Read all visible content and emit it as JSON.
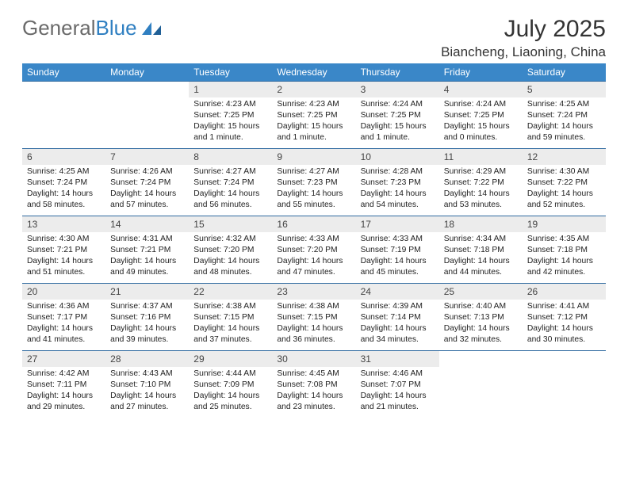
{
  "brand": {
    "part1": "General",
    "part2": "Blue"
  },
  "title": "July 2025",
  "location": "Biancheng, Liaoning, China",
  "colors": {
    "header_bg": "#3a87c8",
    "header_fg": "#ffffff",
    "daynum_bg": "#ececec",
    "row_border": "#2f6aa0",
    "logo_gray": "#6a6a6a",
    "logo_blue": "#2f7fc1"
  },
  "day_names": [
    "Sunday",
    "Monday",
    "Tuesday",
    "Wednesday",
    "Thursday",
    "Friday",
    "Saturday"
  ],
  "weeks": [
    [
      {
        "n": "",
        "lines": [
          "",
          "",
          "",
          ""
        ]
      },
      {
        "n": "",
        "lines": [
          "",
          "",
          "",
          ""
        ]
      },
      {
        "n": "1",
        "lines": [
          "Sunrise: 4:23 AM",
          "Sunset: 7:25 PM",
          "Daylight: 15 hours",
          "and 1 minute."
        ]
      },
      {
        "n": "2",
        "lines": [
          "Sunrise: 4:23 AM",
          "Sunset: 7:25 PM",
          "Daylight: 15 hours",
          "and 1 minute."
        ]
      },
      {
        "n": "3",
        "lines": [
          "Sunrise: 4:24 AM",
          "Sunset: 7:25 PM",
          "Daylight: 15 hours",
          "and 1 minute."
        ]
      },
      {
        "n": "4",
        "lines": [
          "Sunrise: 4:24 AM",
          "Sunset: 7:25 PM",
          "Daylight: 15 hours",
          "and 0 minutes."
        ]
      },
      {
        "n": "5",
        "lines": [
          "Sunrise: 4:25 AM",
          "Sunset: 7:24 PM",
          "Daylight: 14 hours",
          "and 59 minutes."
        ]
      }
    ],
    [
      {
        "n": "6",
        "lines": [
          "Sunrise: 4:25 AM",
          "Sunset: 7:24 PM",
          "Daylight: 14 hours",
          "and 58 minutes."
        ]
      },
      {
        "n": "7",
        "lines": [
          "Sunrise: 4:26 AM",
          "Sunset: 7:24 PM",
          "Daylight: 14 hours",
          "and 57 minutes."
        ]
      },
      {
        "n": "8",
        "lines": [
          "Sunrise: 4:27 AM",
          "Sunset: 7:24 PM",
          "Daylight: 14 hours",
          "and 56 minutes."
        ]
      },
      {
        "n": "9",
        "lines": [
          "Sunrise: 4:27 AM",
          "Sunset: 7:23 PM",
          "Daylight: 14 hours",
          "and 55 minutes."
        ]
      },
      {
        "n": "10",
        "lines": [
          "Sunrise: 4:28 AM",
          "Sunset: 7:23 PM",
          "Daylight: 14 hours",
          "and 54 minutes."
        ]
      },
      {
        "n": "11",
        "lines": [
          "Sunrise: 4:29 AM",
          "Sunset: 7:22 PM",
          "Daylight: 14 hours",
          "and 53 minutes."
        ]
      },
      {
        "n": "12",
        "lines": [
          "Sunrise: 4:30 AM",
          "Sunset: 7:22 PM",
          "Daylight: 14 hours",
          "and 52 minutes."
        ]
      }
    ],
    [
      {
        "n": "13",
        "lines": [
          "Sunrise: 4:30 AM",
          "Sunset: 7:21 PM",
          "Daylight: 14 hours",
          "and 51 minutes."
        ]
      },
      {
        "n": "14",
        "lines": [
          "Sunrise: 4:31 AM",
          "Sunset: 7:21 PM",
          "Daylight: 14 hours",
          "and 49 minutes."
        ]
      },
      {
        "n": "15",
        "lines": [
          "Sunrise: 4:32 AM",
          "Sunset: 7:20 PM",
          "Daylight: 14 hours",
          "and 48 minutes."
        ]
      },
      {
        "n": "16",
        "lines": [
          "Sunrise: 4:33 AM",
          "Sunset: 7:20 PM",
          "Daylight: 14 hours",
          "and 47 minutes."
        ]
      },
      {
        "n": "17",
        "lines": [
          "Sunrise: 4:33 AM",
          "Sunset: 7:19 PM",
          "Daylight: 14 hours",
          "and 45 minutes."
        ]
      },
      {
        "n": "18",
        "lines": [
          "Sunrise: 4:34 AM",
          "Sunset: 7:18 PM",
          "Daylight: 14 hours",
          "and 44 minutes."
        ]
      },
      {
        "n": "19",
        "lines": [
          "Sunrise: 4:35 AM",
          "Sunset: 7:18 PM",
          "Daylight: 14 hours",
          "and 42 minutes."
        ]
      }
    ],
    [
      {
        "n": "20",
        "lines": [
          "Sunrise: 4:36 AM",
          "Sunset: 7:17 PM",
          "Daylight: 14 hours",
          "and 41 minutes."
        ]
      },
      {
        "n": "21",
        "lines": [
          "Sunrise: 4:37 AM",
          "Sunset: 7:16 PM",
          "Daylight: 14 hours",
          "and 39 minutes."
        ]
      },
      {
        "n": "22",
        "lines": [
          "Sunrise: 4:38 AM",
          "Sunset: 7:15 PM",
          "Daylight: 14 hours",
          "and 37 minutes."
        ]
      },
      {
        "n": "23",
        "lines": [
          "Sunrise: 4:38 AM",
          "Sunset: 7:15 PM",
          "Daylight: 14 hours",
          "and 36 minutes."
        ]
      },
      {
        "n": "24",
        "lines": [
          "Sunrise: 4:39 AM",
          "Sunset: 7:14 PM",
          "Daylight: 14 hours",
          "and 34 minutes."
        ]
      },
      {
        "n": "25",
        "lines": [
          "Sunrise: 4:40 AM",
          "Sunset: 7:13 PM",
          "Daylight: 14 hours",
          "and 32 minutes."
        ]
      },
      {
        "n": "26",
        "lines": [
          "Sunrise: 4:41 AM",
          "Sunset: 7:12 PM",
          "Daylight: 14 hours",
          "and 30 minutes."
        ]
      }
    ],
    [
      {
        "n": "27",
        "lines": [
          "Sunrise: 4:42 AM",
          "Sunset: 7:11 PM",
          "Daylight: 14 hours",
          "and 29 minutes."
        ]
      },
      {
        "n": "28",
        "lines": [
          "Sunrise: 4:43 AM",
          "Sunset: 7:10 PM",
          "Daylight: 14 hours",
          "and 27 minutes."
        ]
      },
      {
        "n": "29",
        "lines": [
          "Sunrise: 4:44 AM",
          "Sunset: 7:09 PM",
          "Daylight: 14 hours",
          "and 25 minutes."
        ]
      },
      {
        "n": "30",
        "lines": [
          "Sunrise: 4:45 AM",
          "Sunset: 7:08 PM",
          "Daylight: 14 hours",
          "and 23 minutes."
        ]
      },
      {
        "n": "31",
        "lines": [
          "Sunrise: 4:46 AM",
          "Sunset: 7:07 PM",
          "Daylight: 14 hours",
          "and 21 minutes."
        ]
      },
      {
        "n": "",
        "lines": [
          "",
          "",
          "",
          ""
        ]
      },
      {
        "n": "",
        "lines": [
          "",
          "",
          "",
          ""
        ]
      }
    ]
  ]
}
